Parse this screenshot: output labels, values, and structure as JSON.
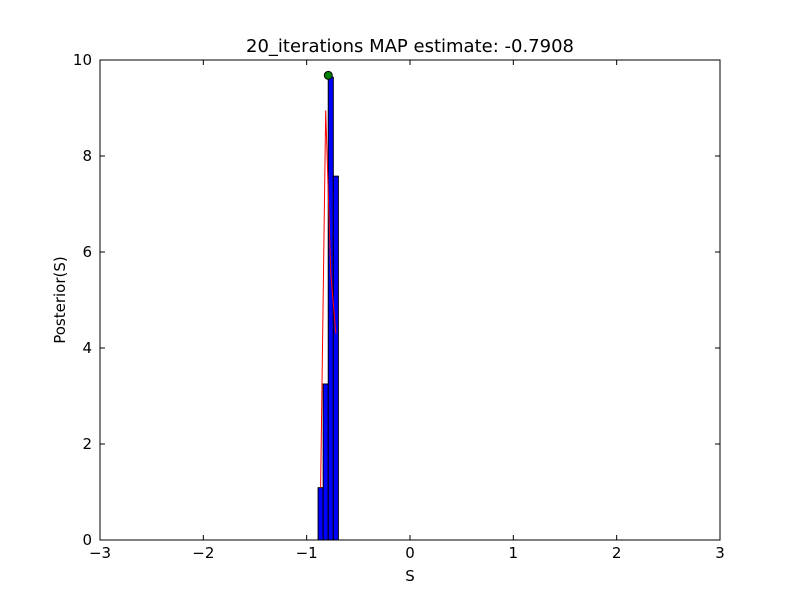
{
  "chart_data": {
    "type": "bar",
    "title": "20_iterations MAP estimate: -0.7908",
    "xlabel": "S",
    "ylabel": "Posterior(S)",
    "xlim": [
      -3,
      3
    ],
    "ylim": [
      0,
      10
    ],
    "xticks": [
      -3,
      -2,
      -1,
      0,
      1,
      2,
      3
    ],
    "xtick_labels": [
      "−3",
      "−2",
      "−1",
      "0",
      "1",
      "2",
      "3"
    ],
    "yticks": [
      0,
      2,
      4,
      6,
      8,
      10
    ],
    "ytick_labels": [
      "0",
      "2",
      "4",
      "6",
      "8",
      "10"
    ],
    "grid": false,
    "histogram": {
      "bin_edges": [
        -0.8895,
        -0.8404,
        -0.7913,
        -0.7422,
        -0.6931
      ],
      "values": [
        1.09,
        3.25,
        9.64,
        7.58
      ],
      "color": "#0000ff"
    },
    "line": {
      "x": [
        -0.865,
        -0.8159,
        -0.7667,
        -0.7176
      ],
      "y": [
        1.09,
        8.95,
        5.55,
        4.3
      ],
      "color": "#ff0000"
    },
    "map_point": {
      "x": -0.7908,
      "y": 9.68,
      "color": "#008000"
    }
  }
}
